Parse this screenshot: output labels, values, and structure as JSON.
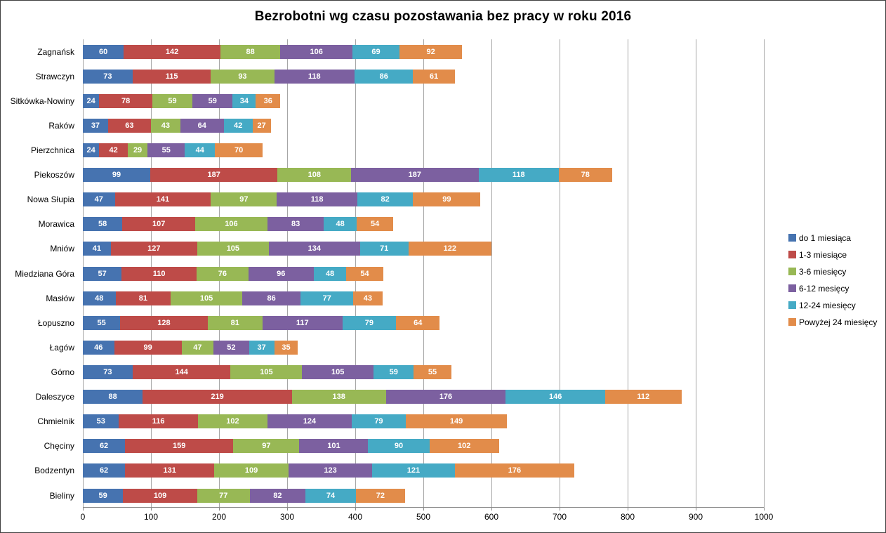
{
  "chart_data": {
    "type": "bar",
    "stacked": true,
    "orientation": "horizontal",
    "title": "Bezrobotni wg czasu pozostawania bez pracy w roku 2016",
    "categories": [
      "Zagnańsk",
      "Strawczyn",
      "Sitkówka-Nowiny",
      "Raków",
      "Pierzchnica",
      "Piekoszów",
      "Nowa Słupia",
      "Morawica",
      "Mniów",
      "Miedziana Góra",
      "Masłów",
      "Łopuszno",
      "Łagów",
      "Górno",
      "Daleszyce",
      "Chmielnik",
      "Chęciny",
      "Bodzentyn",
      "Bieliny"
    ],
    "series": [
      {
        "name": "do 1 miesiąca",
        "color": "#4673B0",
        "values": [
          60,
          73,
          24,
          37,
          24,
          99,
          47,
          58,
          41,
          57,
          48,
          55,
          46,
          73,
          88,
          53,
          62,
          62,
          59
        ]
      },
      {
        "name": "1-3 miesiące",
        "color": "#BE4B48",
        "values": [
          142,
          115,
          78,
          63,
          42,
          187,
          141,
          107,
          127,
          110,
          81,
          128,
          99,
          144,
          219,
          116,
          159,
          131,
          109
        ]
      },
      {
        "name": "3-6 miesięcy",
        "color": "#98B855",
        "values": [
          88,
          93,
          59,
          43,
          29,
          108,
          97,
          106,
          105,
          76,
          105,
          81,
          47,
          105,
          138,
          102,
          97,
          109,
          77
        ]
      },
      {
        "name": "6-12 mesięcy",
        "color": "#7C60A0",
        "values": [
          106,
          118,
          59,
          64,
          55,
          187,
          118,
          83,
          134,
          96,
          86,
          117,
          52,
          105,
          176,
          124,
          101,
          123,
          82
        ]
      },
      {
        "name": "12-24 miesięcy",
        "color": "#45AAC5",
        "values": [
          69,
          86,
          34,
          42,
          44,
          118,
          82,
          48,
          71,
          48,
          77,
          79,
          37,
          59,
          146,
          79,
          90,
          121,
          74
        ]
      },
      {
        "name": "Powyżej 24 miesięcy",
        "color": "#E28C4A",
        "values": [
          92,
          61,
          36,
          27,
          70,
          78,
          99,
          54,
          122,
          54,
          43,
          64,
          35,
          55,
          112,
          149,
          102,
          176,
          72
        ]
      }
    ],
    "xlim": [
      0,
      1000
    ],
    "xticks": [
      0,
      100,
      200,
      300,
      400,
      500,
      600,
      700,
      800,
      900,
      1000
    ],
    "grid": "vertical",
    "legend_position": "right",
    "data_labels": "inside-center-white"
  },
  "style_colors": {
    "gridline": "#a6a6a6",
    "axis_line": "#898989",
    "frame_border": "#404040",
    "background": "#ffffff",
    "title_color": "#000000"
  }
}
